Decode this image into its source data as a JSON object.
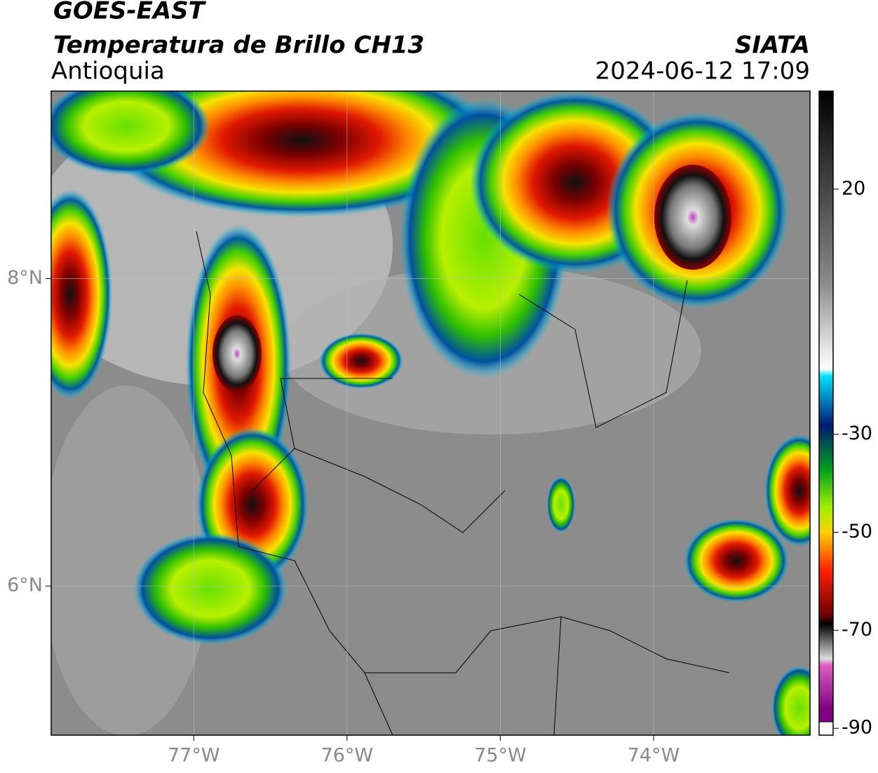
{
  "header": {
    "title": "GOES-EAST",
    "subtitle": "Temperatura de Brillo CH13",
    "region": "Antioquia",
    "source": "SIATA",
    "datetime": "2024-06-12 17:09"
  },
  "map": {
    "xlim": [
      -77.93,
      -72.98
    ],
    "ylim": [
      5.03,
      9.22
    ],
    "xticks": [
      {
        "value": -77,
        "label": "77°W"
      },
      {
        "value": -76,
        "label": "76°W"
      },
      {
        "value": -75,
        "label": "75°W"
      },
      {
        "value": -74,
        "label": "74°W"
      }
    ],
    "yticks": [
      {
        "value": 6,
        "label": "6°N"
      },
      {
        "value": 8,
        "label": "8°N"
      }
    ],
    "colorbar": {
      "lim": [
        -91.4,
        40
      ],
      "ticks": [
        20,
        -30,
        -50,
        -70,
        -90
      ]
    }
  }
}
